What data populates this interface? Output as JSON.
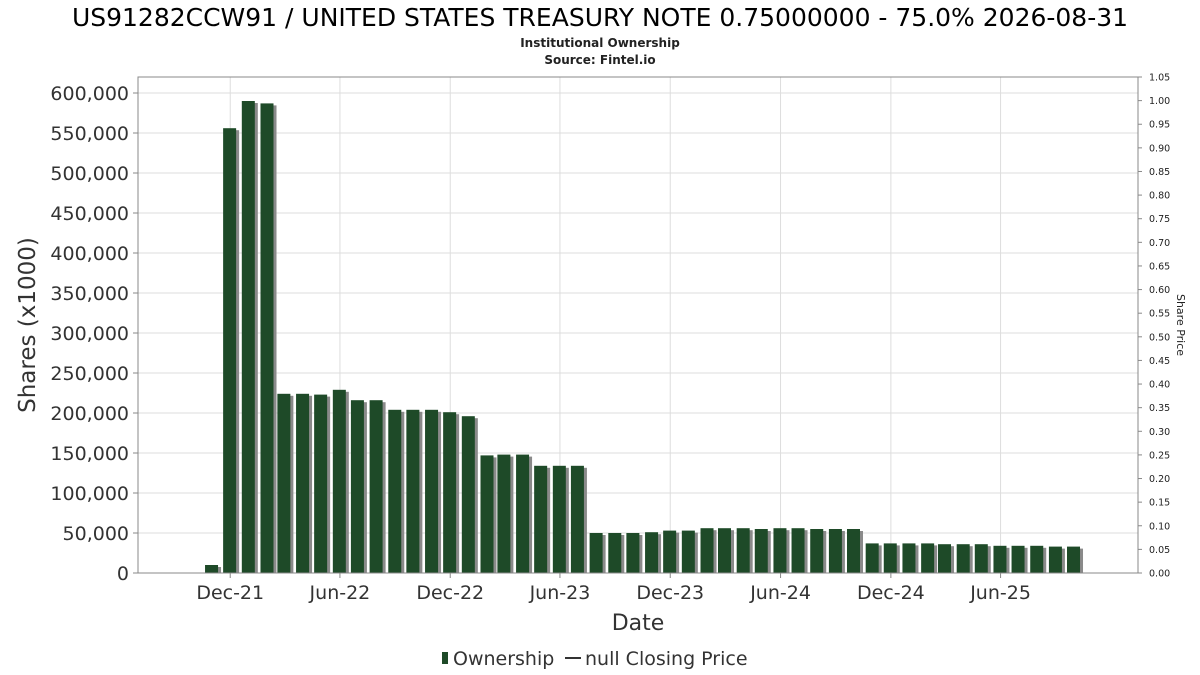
{
  "chart_data": {
    "type": "bar",
    "title": "US91282CCW91 / UNITED STATES TREASURY NOTE 0.75000000 - 75.0% 2026-08-31",
    "subtitle": "Institutional Ownership",
    "source": "Source: Fintel.io",
    "xlabel": "Date",
    "ylabel": "Shares (x1000)",
    "y2label": "Share Price",
    "ylim": [
      0,
      620000
    ],
    "y2lim": [
      0,
      1.05
    ],
    "yticks": [
      "0",
      "50,000",
      "100,000",
      "150,000",
      "200,000",
      "250,000",
      "300,000",
      "350,000",
      "400,000",
      "450,000",
      "500,000",
      "550,000",
      "600,000"
    ],
    "y2ticks": [
      "0.00",
      "0.05",
      "0.10",
      "0.15",
      "0.20",
      "0.25",
      "0.30",
      "0.35",
      "0.40",
      "0.45",
      "0.50",
      "0.55",
      "0.60",
      "0.65",
      "0.70",
      "0.75",
      "0.80",
      "0.85",
      "0.90",
      "0.95",
      "1.00",
      "1.05"
    ],
    "xticks": [
      "Dec-21",
      "Jun-22",
      "Dec-22",
      "Jun-23",
      "Dec-23",
      "Jun-24",
      "Dec-24",
      "Jun-25"
    ],
    "grid": true,
    "bar_color": "#1e4a28",
    "shadow_color": "#8a8a8a",
    "categories": [
      "2021-10-31",
      "2021-11-30",
      "2021-12-31",
      "2022-01-31",
      "2022-02-28",
      "2022-03-31",
      "2022-04-30",
      "2022-05-31",
      "2022-06-30",
      "2022-07-31",
      "2022-08-31",
      "2022-09-30",
      "2022-10-31",
      "2022-11-30",
      "2022-12-31",
      "2023-01-31",
      "2023-02-28",
      "2023-03-31",
      "2023-04-30",
      "2023-05-31",
      "2023-06-30",
      "2023-07-31",
      "2023-08-31",
      "2023-09-30",
      "2023-10-31",
      "2023-11-30",
      "2023-12-31",
      "2024-01-31",
      "2024-02-29",
      "2024-03-31",
      "2024-04-30",
      "2024-05-31",
      "2024-06-30",
      "2024-07-31",
      "2024-08-31",
      "2024-09-30",
      "2024-10-31",
      "2024-11-30",
      "2024-12-31",
      "2025-01-31",
      "2025-02-28",
      "2025-03-31",
      "2025-04-30",
      "2025-05-31",
      "2025-06-30",
      "2025-07-31",
      "2025-08-31",
      "2025-09-30"
    ],
    "series": [
      {
        "name": "Ownership",
        "values": [
          10000,
          556000,
          590000,
          587000,
          224000,
          224000,
          223000,
          229000,
          216000,
          216000,
          204000,
          204000,
          204000,
          201000,
          196000,
          147000,
          148000,
          148000,
          134000,
          134000,
          134000,
          50000,
          50000,
          50000,
          51000,
          53000,
          53000,
          56000,
          56000,
          56000,
          55000,
          56000,
          56000,
          55000,
          55000,
          55000,
          37000,
          37000,
          37000,
          37000,
          36000,
          36000,
          36000,
          34000,
          34000,
          34000,
          33000,
          33000
        ]
      }
    ],
    "legend": {
      "position": "bottom-center",
      "ownership_label": "Ownership",
      "price_label": "null Closing Price"
    }
  }
}
